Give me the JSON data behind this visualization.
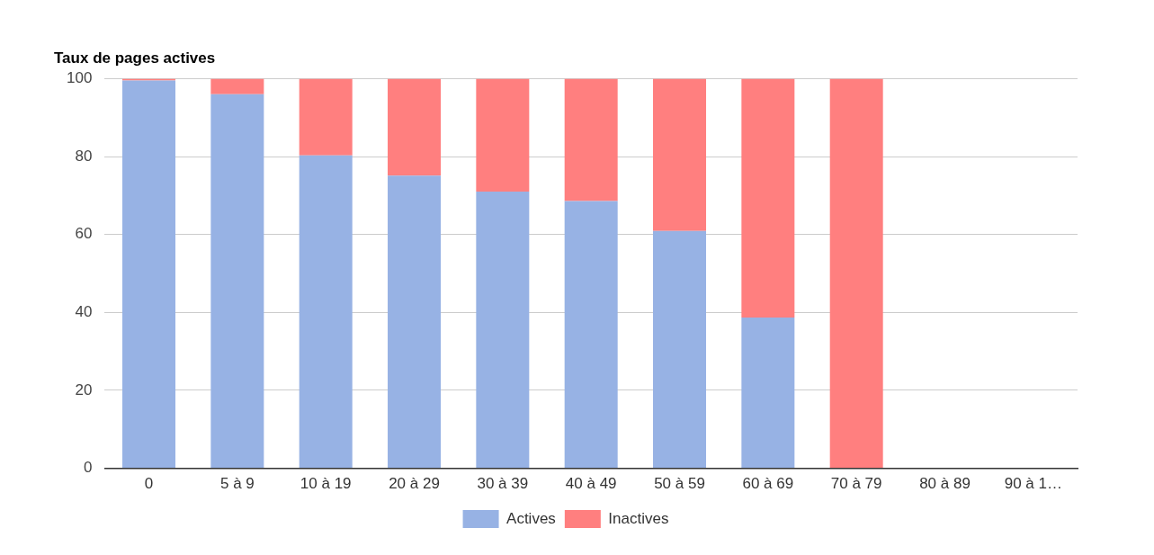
{
  "chart_data": {
    "type": "bar",
    "title": "Taux de pages actives",
    "stacked": true,
    "categories": [
      "0",
      "5 à 9",
      "10 à 19",
      "20 à 29",
      "30 à 39",
      "40 à 49",
      "50 à 59",
      "60 à 69",
      "70 à 79",
      "80 à 89",
      "90 à 1…"
    ],
    "series": [
      {
        "name": "Actives",
        "color": "#97b2e4",
        "values": [
          99.5,
          96,
          80.3,
          75.1,
          71,
          68.6,
          60.9,
          38.7,
          0,
          null,
          null
        ]
      },
      {
        "name": "Inactives",
        "color": "#ff7f7f",
        "values": [
          0.5,
          4,
          19.7,
          24.9,
          29,
          31.4,
          39.1,
          61.3,
          100,
          null,
          null
        ]
      }
    ],
    "ylim": [
      0,
      100
    ],
    "yticks": [
      0,
      20,
      40,
      60,
      80,
      100
    ],
    "grid": "y",
    "legend": "bottom"
  }
}
